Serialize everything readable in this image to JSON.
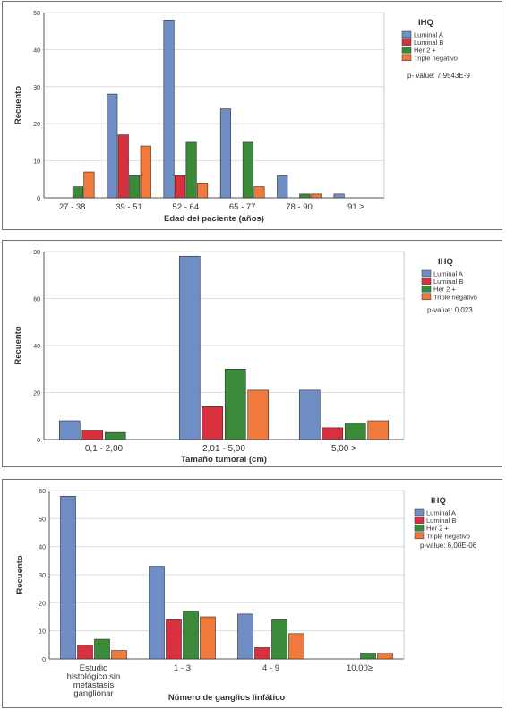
{
  "legend_swatch_colors": [
    "#6f8ec6",
    "#d9303f",
    "#3a8a3a",
    "#ef7a3c"
  ],
  "chart_data": [
    {
      "type": "bar",
      "xlabel": "Edad del paciente (años)",
      "ylabel": "Recuento",
      "ylim": [
        0,
        50
      ],
      "yticks": [
        0,
        10,
        20,
        30,
        40,
        50
      ],
      "grid": true,
      "legend_title": "IHQ",
      "legend_position": "right",
      "annotation": "p- value: 7,9543E-9",
      "categories": [
        "27 - 38",
        "39 - 51",
        "52 - 64",
        "65 - 77",
        "78 - 90",
        "91 ≥"
      ],
      "series": [
        {
          "name": "Luminal A",
          "color": "#6f8ec6",
          "values": [
            0,
            28,
            48,
            24,
            6,
            1
          ]
        },
        {
          "name": "Luminal B",
          "color": "#d9303f",
          "values": [
            0,
            17,
            6,
            0,
            0,
            0
          ]
        },
        {
          "name": "Her 2  +",
          "color": "#3a8a3a",
          "values": [
            3,
            6,
            15,
            15,
            1,
            0
          ]
        },
        {
          "name": "Triple negativo",
          "color": "#ef7a3c",
          "values": [
            7,
            14,
            4,
            3,
            1,
            0
          ]
        }
      ]
    },
    {
      "type": "bar",
      "xlabel": "Tamaño tumoral (cm)",
      "ylabel": "Recuento",
      "ylim": [
        0,
        80
      ],
      "yticks": [
        0,
        20,
        40,
        60,
        80
      ],
      "grid": true,
      "legend_title": "IHQ",
      "legend_position": "right",
      "annotation": "p-value: 0,023",
      "categories": [
        "0,1 -  2,00",
        "2,01 - 5,00",
        "5,00 >"
      ],
      "series": [
        {
          "name": "Luminal A",
          "color": "#6f8ec6",
          "values": [
            8,
            78,
            21
          ]
        },
        {
          "name": "Luminal B",
          "color": "#d9303f",
          "values": [
            4,
            14,
            5
          ]
        },
        {
          "name": "Her 2  +",
          "color": "#3a8a3a",
          "values": [
            3,
            30,
            7
          ]
        },
        {
          "name": "Triple negativo",
          "color": "#ef7a3c",
          "values": [
            0,
            21,
            8
          ]
        }
      ]
    },
    {
      "type": "bar",
      "xlabel": "Número de ganglios linfático",
      "ylabel": "Recuento",
      "ylim": [
        0,
        60
      ],
      "yticks": [
        0,
        10,
        20,
        30,
        40,
        50,
        60
      ],
      "grid": true,
      "legend_title": "IHQ",
      "legend_position": "right",
      "annotation": "p-value: 6,00E-06",
      "categories": [
        "Estudio histológico sin metástasis ganglionar",
        "1 - 3",
        "4 - 9",
        "10,00≥"
      ],
      "category_lines": [
        [
          "Estudio",
          "histológico sin",
          "metástasis",
          "ganglionar"
        ],
        [
          "1 - 3"
        ],
        [
          "4 - 9"
        ],
        [
          "10,00≥"
        ]
      ],
      "series": [
        {
          "name": "Luminal A",
          "color": "#6f8ec6",
          "values": [
            58,
            33,
            16,
            0
          ]
        },
        {
          "name": "Luminal B",
          "color": "#d9303f",
          "values": [
            5,
            14,
            4,
            0
          ]
        },
        {
          "name": "Her 2  +",
          "color": "#3a8a3a",
          "values": [
            7,
            17,
            14,
            2
          ]
        },
        {
          "name": "Triple negativo",
          "color": "#ef7a3c",
          "values": [
            3,
            15,
            9,
            2
          ]
        }
      ]
    }
  ]
}
